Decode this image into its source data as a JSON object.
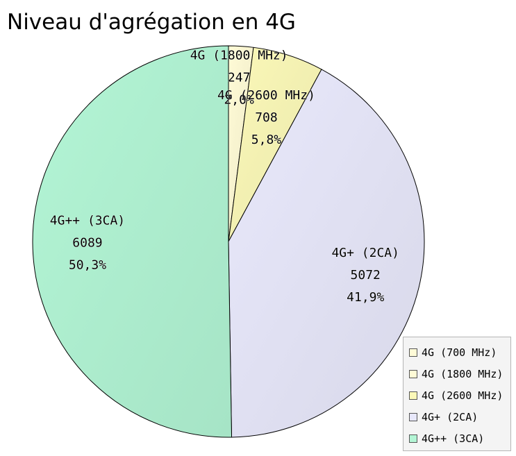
{
  "chart_data": {
    "type": "pie",
    "title": "Niveau d'agrégation en 4G",
    "legend_position": "bottom-right",
    "slices": [
      {
        "name": "4G (700 MHz)",
        "value": 0,
        "percent_label": "",
        "value_label": "",
        "color": "#fffbd8",
        "show_label": false
      },
      {
        "name": "4G (1800 MHz)",
        "value": 247,
        "percent_label": "2,0%",
        "value_label": "247",
        "color": "#fffbd6",
        "show_label": true
      },
      {
        "name": "4G (2600 MHz)",
        "value": 708,
        "percent_label": "5,8%",
        "value_label": "708",
        "color": "#fbf8b8",
        "show_label": true
      },
      {
        "name": "4G+ (2CA)",
        "value": 5072,
        "percent_label": "41,9%",
        "value_label": "5072",
        "color": "#e8e8fb",
        "show_label": true
      },
      {
        "name": "4G++ (3CA)",
        "value": 6089,
        "percent_label": "50,3%",
        "value_label": "6089",
        "color": "#b3f5d5",
        "show_label": true
      }
    ]
  }
}
